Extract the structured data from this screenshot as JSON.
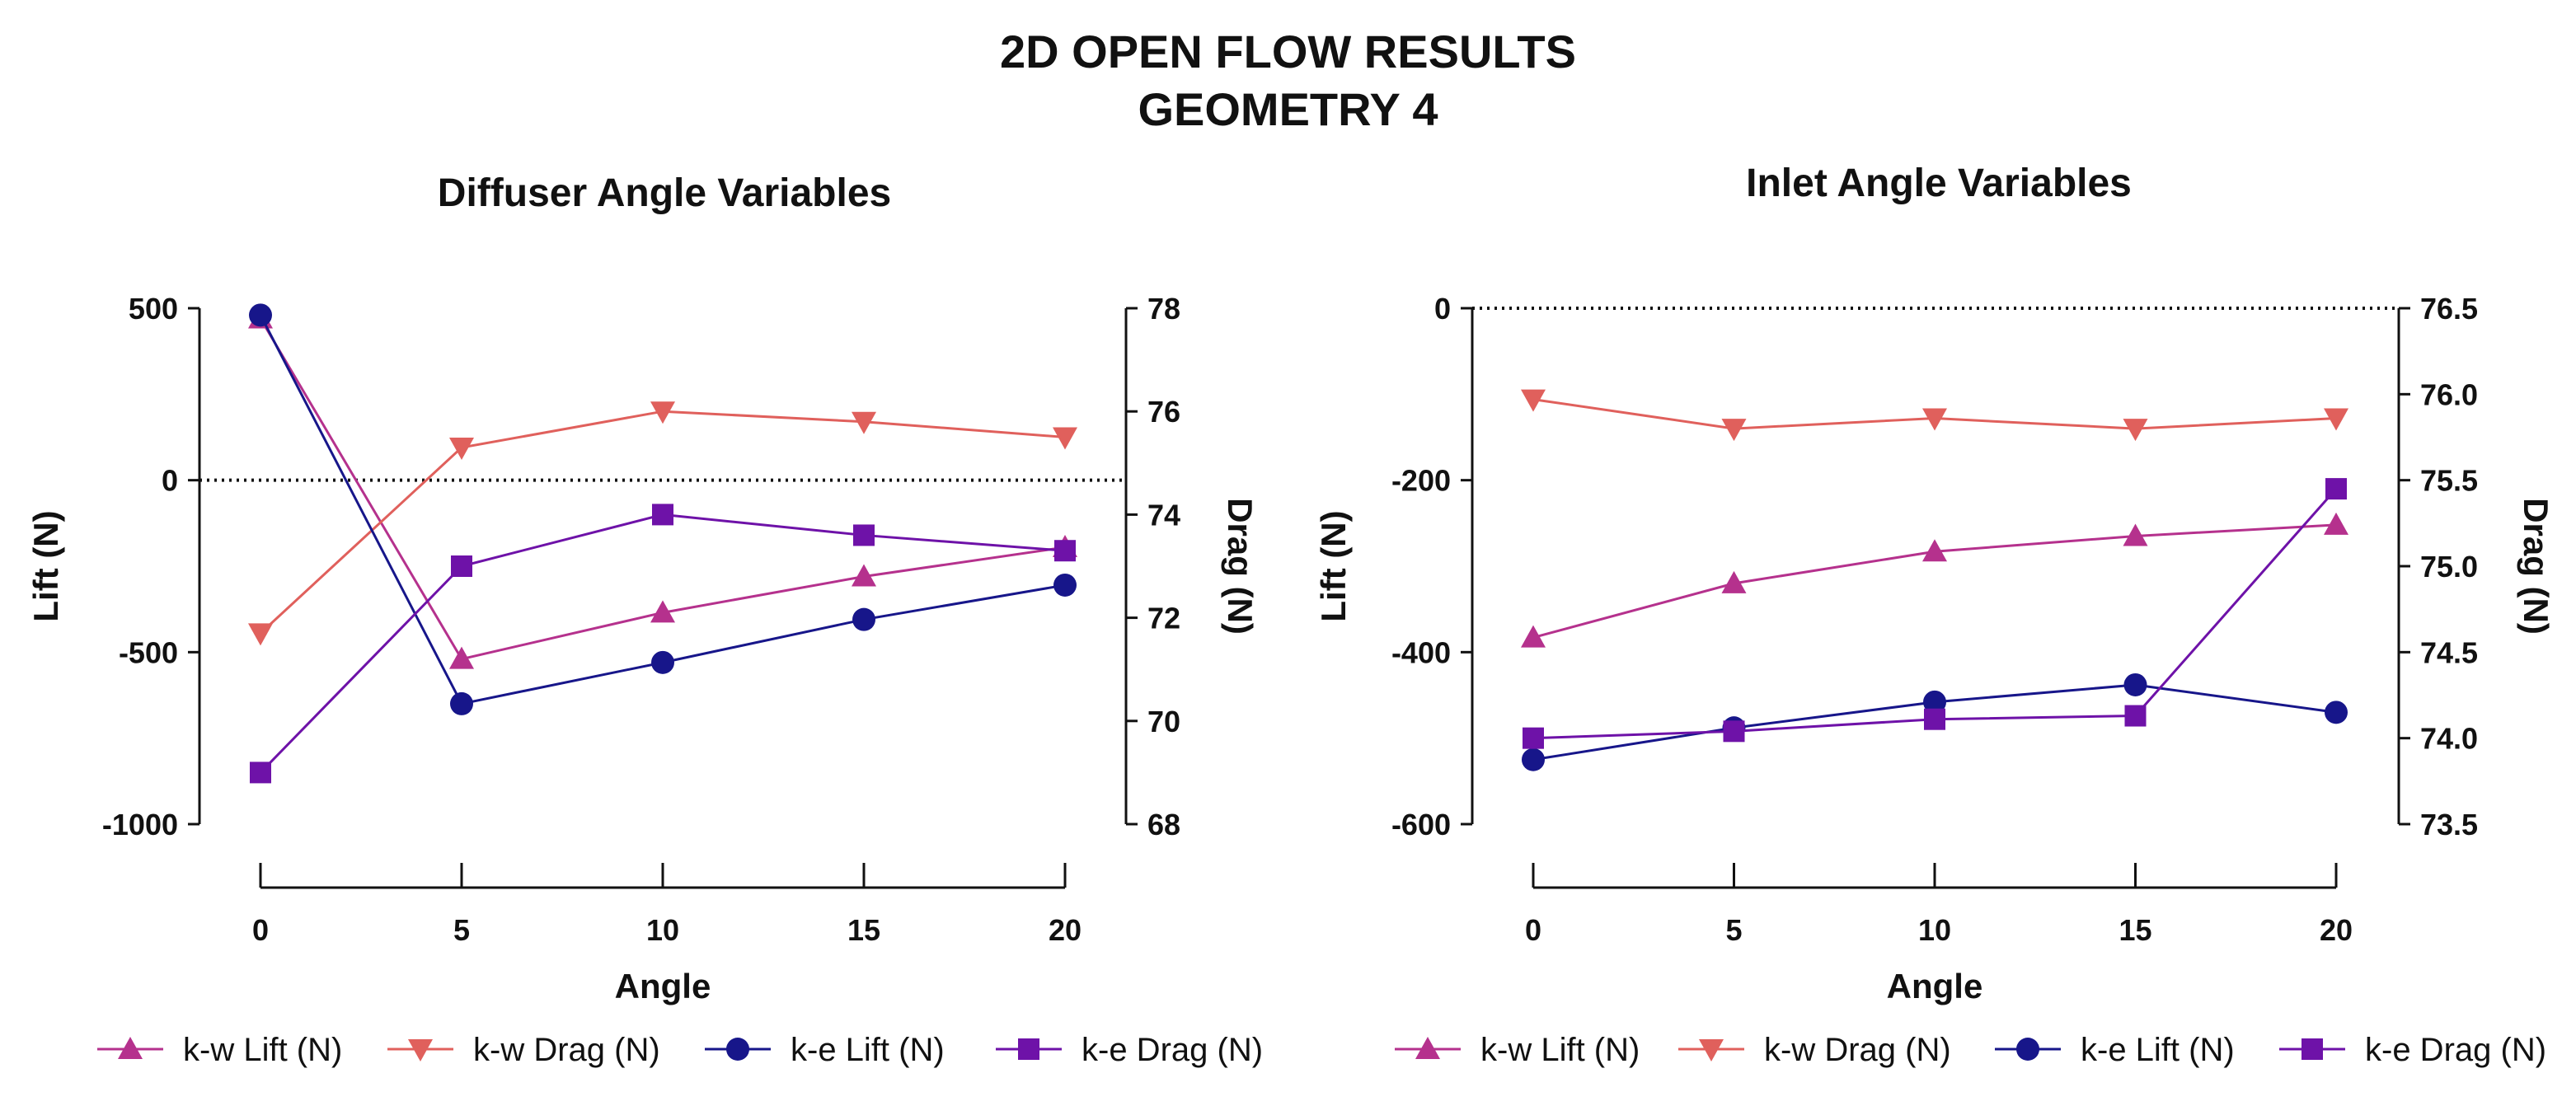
{
  "page": {
    "title_line1": "2D OPEN FLOW RESULTS",
    "title_line2": "GEOMETRY 4"
  },
  "colors": {
    "kw_lift": "#B5318D",
    "kw_drag": "#E0605C",
    "ke_lift": "#17168A",
    "ke_drag": "#6E12A8"
  },
  "chart_data": [
    {
      "type": "line",
      "title": "Diffuser Angle Variables",
      "xlabel": "Angle",
      "ylabel": "Lift (N)",
      "y2label": "Drag (N)",
      "x": [
        0,
        5,
        10,
        15,
        20
      ],
      "xticks": [
        0,
        5,
        10,
        15,
        20
      ],
      "xlim": [
        0,
        20
      ],
      "ylim": [
        -1000,
        500
      ],
      "yticks": [
        -1000,
        -500,
        0,
        500
      ],
      "y2lim": [
        68,
        78
      ],
      "y2ticks": [
        68,
        70,
        72,
        74,
        76,
        78
      ],
      "zero_line": true,
      "legend_position": "bottom",
      "series": [
        {
          "name": "k-w Lift (N)",
          "axis": "left",
          "marker": "triangle-up",
          "color": "#B5318D",
          "values": [
            470,
            -520,
            -385,
            -280,
            -195
          ]
        },
        {
          "name": "k-w Drag (N)",
          "axis": "right",
          "marker": "triangle-down",
          "color": "#E0605C",
          "values": [
            71.7,
            75.3,
            76.0,
            75.8,
            75.5
          ]
        },
        {
          "name": "k-e Lift (N)",
          "axis": "left",
          "marker": "circle",
          "color": "#17168A",
          "values": [
            480,
            -650,
            -530,
            -405,
            -305
          ]
        },
        {
          "name": "k-e Drag (N)",
          "axis": "right",
          "marker": "square",
          "color": "#6E12A8",
          "values": [
            69.0,
            73.0,
            74.0,
            73.6,
            73.3
          ]
        }
      ]
    },
    {
      "type": "line",
      "title": "Inlet Angle Variables",
      "xlabel": "Angle",
      "ylabel": "Lift (N)",
      "y2label": "Drag (N)",
      "x": [
        0,
        5,
        10,
        15,
        20
      ],
      "xticks": [
        0,
        5,
        10,
        15,
        20
      ],
      "xlim": [
        0,
        20
      ],
      "ylim": [
        -600,
        0
      ],
      "yticks": [
        -600,
        -400,
        -200,
        0
      ],
      "y2lim": [
        73.5,
        76.5
      ],
      "y2ticks": [
        73.5,
        74.0,
        74.5,
        75.0,
        75.5,
        76.0,
        76.5
      ],
      "zero_line": true,
      "legend_position": "bottom",
      "series": [
        {
          "name": "k-w Lift (N)",
          "axis": "left",
          "marker": "triangle-up",
          "color": "#B5318D",
          "values": [
            -383,
            -320,
            -283,
            -265,
            -252
          ]
        },
        {
          "name": "k-w Drag (N)",
          "axis": "right",
          "marker": "triangle-down",
          "color": "#E0605C",
          "values": [
            75.97,
            75.8,
            75.86,
            75.8,
            75.86
          ]
        },
        {
          "name": "k-e Lift (N)",
          "axis": "left",
          "marker": "circle",
          "color": "#17168A",
          "values": [
            -525,
            -488,
            -458,
            -438,
            -470
          ]
        },
        {
          "name": "k-e Drag (N)",
          "axis": "right",
          "marker": "square",
          "color": "#6E12A8",
          "values": [
            74.0,
            74.04,
            74.11,
            74.13,
            75.45
          ]
        }
      ]
    }
  ]
}
